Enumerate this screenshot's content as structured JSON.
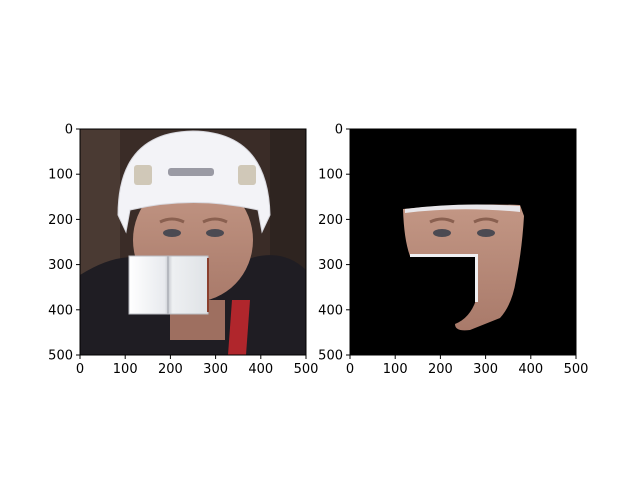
{
  "chart_data": [
    {
      "type": "image",
      "xlim": [
        0,
        500
      ],
      "ylim": [
        500,
        0
      ],
      "xticks": [
        "0",
        "100",
        "200",
        "300",
        "400",
        "500"
      ],
      "yticks": [
        "0",
        "100",
        "200",
        "300",
        "400",
        "500"
      ],
      "content": "face-with-occluder"
    },
    {
      "type": "image",
      "xlim": [
        0,
        500
      ],
      "ylim": [
        500,
        0
      ],
      "xticks": [
        "0",
        "100",
        "200",
        "300",
        "400",
        "500"
      ],
      "yticks": [
        "0",
        "100",
        "200",
        "300",
        "400",
        "500"
      ],
      "content": "segmented-face-mask"
    }
  ],
  "colors": {
    "background": "#2a1f1c",
    "mask_background": "#000000",
    "helmet": "#f2f2f6",
    "skin": "#b88a78",
    "jersey": "#1e1c22",
    "occluder": "#f4f4f6"
  }
}
